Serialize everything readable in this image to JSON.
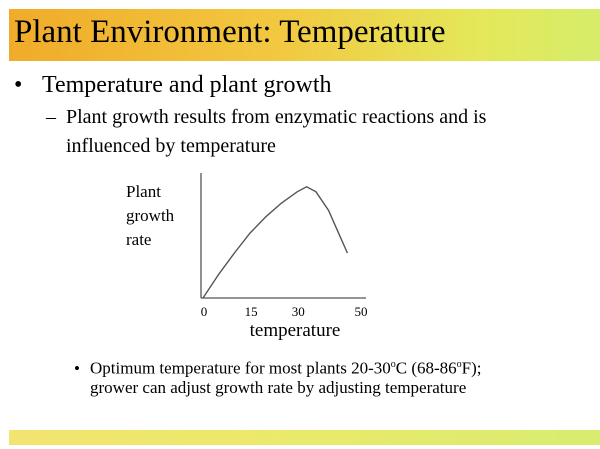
{
  "slide": {
    "title": "Plant Environment: Temperature",
    "bullet1": "Temperature and plant growth",
    "bullet_marker": "•",
    "dash_marker": "–",
    "sub_line1": "Plant growth results from enzymatic reactions and is",
    "sub_line2": "influenced by temperature",
    "bullet2_line1_a": "Optimum temperature for most plants 20-30",
    "bullet2_sup1": "o",
    "bullet2_line1_b": "C (68-86",
    "bullet2_sup2": "o",
    "bullet2_line1_c": "F);",
    "bullet2_line2": "grower can adjust growth rate by adjusting temperature",
    "colors": {
      "header_start": "#f0ab2a",
      "header_end": "#d6ec6a"
    }
  },
  "chart_data": {
    "type": "line",
    "title": "",
    "xlabel": "temperature",
    "ylabel_lines": [
      "Plant",
      "growth",
      "rate"
    ],
    "xticks": [
      "0",
      "15",
      "30",
      "50"
    ],
    "xtick_values": [
      0,
      15,
      30,
      50
    ],
    "xlim": [
      0,
      50
    ],
    "ylim": [
      0,
      1
    ],
    "grid": false,
    "series": [
      {
        "name": "growth rate",
        "x": [
          0,
          5,
          10,
          15,
          20,
          25,
          30,
          33,
          36,
          40,
          43,
          46
        ],
        "y": [
          0,
          0.19,
          0.36,
          0.52,
          0.65,
          0.76,
          0.85,
          0.89,
          0.85,
          0.7,
          0.53,
          0.36
        ]
      }
    ]
  }
}
